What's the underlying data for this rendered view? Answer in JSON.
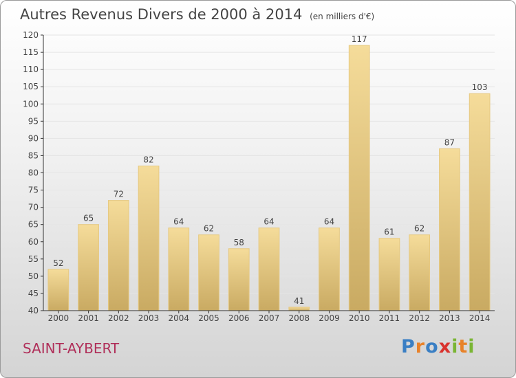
{
  "header": {
    "title": "Autres Revenus Divers de 2000 à 2014",
    "unit": "(en milliers d'€)"
  },
  "footer": {
    "commune": "SAINT-AYBERT",
    "logo": [
      "P",
      "r",
      "o",
      "x",
      "i",
      "t",
      "i"
    ],
    "logo_colors": [
      "#3a7fc4",
      "#e8822a",
      "#3a7fc4",
      "#d9332e",
      "#7ab534",
      "#e8822a",
      "#7ab534"
    ]
  },
  "colors": {
    "bar_top": "#f5dc9a",
    "bar_bottom": "#c9aa62",
    "bar_edge": "#e6c982",
    "grid": "#e5e5e5",
    "axis": "#333333",
    "accent": "#b0305a"
  },
  "chart_data": {
    "type": "bar",
    "title": "Autres Revenus Divers de 2000 à 2014",
    "subtitle": "(en milliers d'€)",
    "xlabel": "",
    "ylabel": "",
    "categories": [
      "2000",
      "2001",
      "2002",
      "2003",
      "2004",
      "2005",
      "2006",
      "2007",
      "2008",
      "2009",
      "2010",
      "2011",
      "2012",
      "2013",
      "2014"
    ],
    "values": [
      52,
      65,
      72,
      82,
      64,
      62,
      58,
      64,
      41,
      64,
      117,
      61,
      62,
      87,
      103
    ],
    "ylim": [
      40,
      120
    ],
    "yticks": [
      40,
      45,
      50,
      55,
      60,
      65,
      70,
      75,
      80,
      85,
      90,
      95,
      100,
      105,
      110,
      115,
      120
    ],
    "grid": true,
    "legend": "none"
  }
}
